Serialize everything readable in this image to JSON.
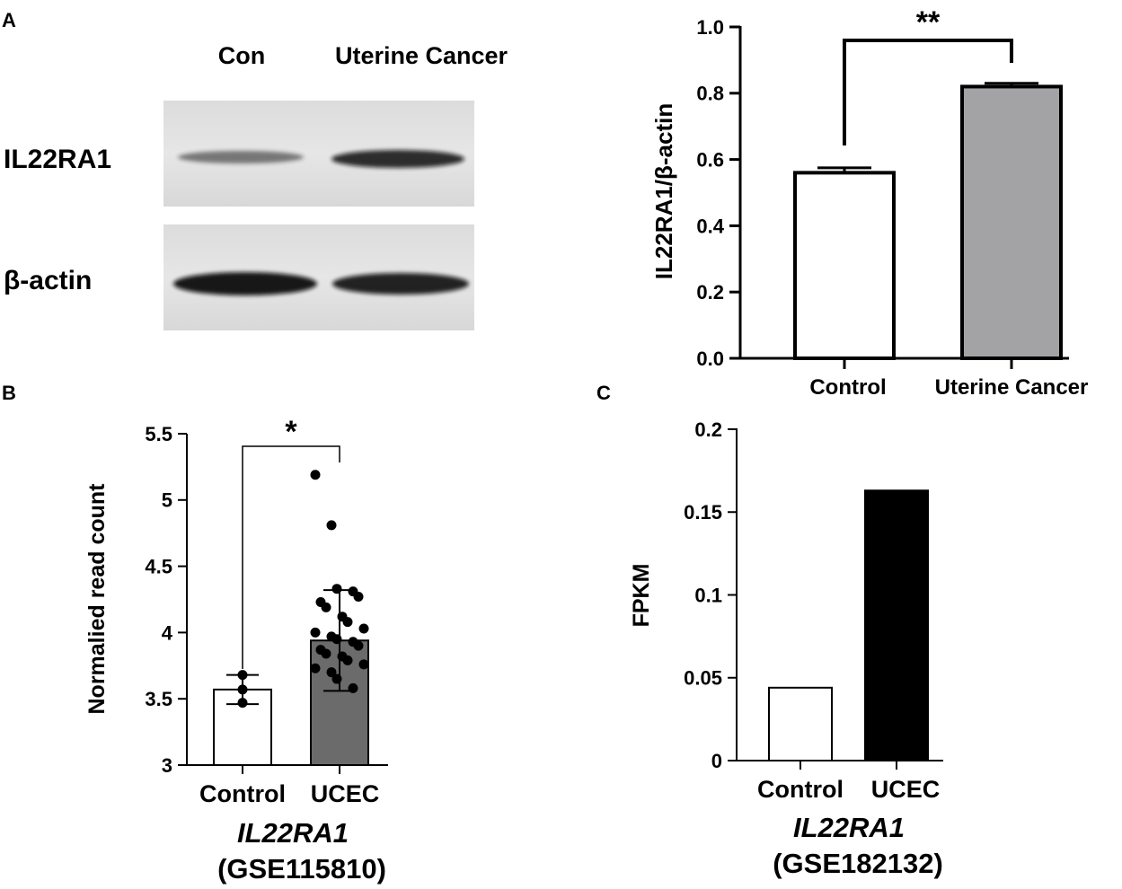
{
  "panels": {
    "a": "A",
    "b": "B",
    "c": "C"
  },
  "blot": {
    "lane_labels": [
      "Con",
      "Uterine Cancer"
    ],
    "row_labels": [
      "IL22RA1",
      "β-actin"
    ],
    "band_intensity": {
      "IL22RA1": [
        0.55,
        0.85
      ],
      "β-actin": [
        0.95,
        0.9
      ]
    }
  },
  "chart_data": [
    {
      "id": "A",
      "type": "bar",
      "categories": [
        "Control",
        "Uterine Cancer"
      ],
      "values": [
        0.56,
        0.82
      ],
      "errors": [
        0.015,
        0.01
      ],
      "ylabel": "IL22RA1/β-actin",
      "ylim": [
        0,
        1.0
      ],
      "yticks": [
        0.0,
        0.2,
        0.4,
        0.6,
        0.8,
        1.0
      ],
      "ytick_labels": [
        "0.0",
        "0.2",
        "0.4",
        "0.6",
        "0.8",
        "1.0"
      ],
      "bar_colors": [
        "#ffffff",
        "#a3a3a6"
      ],
      "significance": "**",
      "grid": false
    },
    {
      "id": "B",
      "type": "bar",
      "categories": [
        "Control",
        "UCEC"
      ],
      "values": [
        3.57,
        3.94
      ],
      "errors": [
        0.11,
        0.38
      ],
      "points": [
        [
          3.68,
          3.57,
          3.47
        ],
        [
          5.19,
          4.81,
          4.33,
          4.31,
          4.27,
          4.23,
          4.19,
          4.12,
          4.08,
          4.03,
          4.0,
          3.97,
          3.95,
          3.93,
          3.9,
          3.87,
          3.84,
          3.82,
          3.79,
          3.76,
          3.73,
          3.7,
          3.65,
          3.58
        ]
      ],
      "ylabel": "Normalied read count",
      "xlabel": "IL22RA1",
      "xlabel2": "(GSE115810)",
      "ylim": [
        3,
        5.5
      ],
      "yticks": [
        3,
        3.5,
        4,
        4.5,
        5,
        5.5
      ],
      "ytick_labels": [
        "3",
        "3.5",
        "4",
        "4.5",
        "5",
        "5.5"
      ],
      "bar_colors": [
        "#ffffff",
        "#6b6b6b"
      ],
      "significance": "*",
      "grid": false
    },
    {
      "id": "C",
      "type": "bar",
      "categories": [
        "Control",
        "UCEC"
      ],
      "values": [
        0.044,
        0.163
      ],
      "ylabel": "FPKM",
      "xlabel": "IL22RA1",
      "xlabel2": "(GSE182132)",
      "ylim": [
        0,
        0.2
      ],
      "yticks": [
        0,
        0.05,
        0.1,
        0.15,
        0.2
      ],
      "ytick_labels": [
        "0",
        "0.05",
        "0.1",
        "0.15",
        "0.2"
      ],
      "bar_colors": [
        "#ffffff",
        "#000000"
      ],
      "grid": false
    }
  ]
}
